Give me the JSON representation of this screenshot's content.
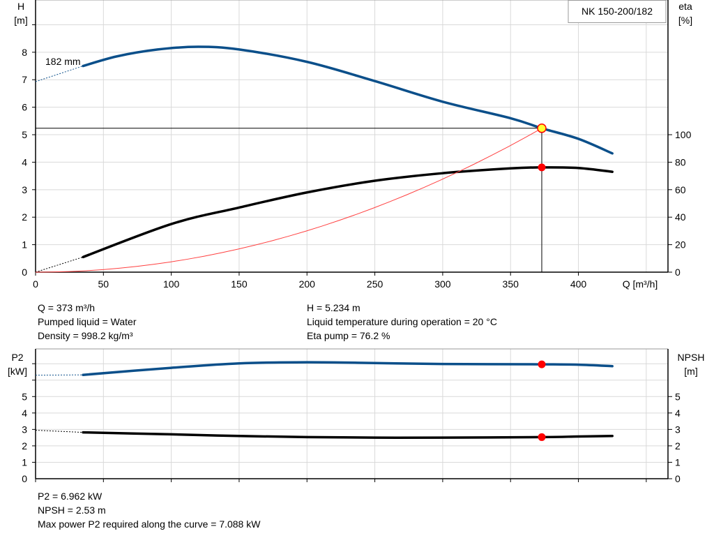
{
  "chart_data": [
    {
      "type": "line",
      "legend": "NK 150-200/182",
      "curve_label": "182 mm",
      "xlabel": "Q [m³/h]",
      "xlim": [
        0,
        466
      ],
      "xticks": [
        0,
        50,
        100,
        150,
        200,
        250,
        300,
        350,
        400
      ],
      "ylabel_left": [
        "H",
        "[m]"
      ],
      "ylim_left": [
        0,
        9.9
      ],
      "yticks_left": [
        0,
        1,
        2,
        3,
        4,
        5,
        6,
        7,
        8
      ],
      "ylabel_right": [
        "eta",
        "[%]"
      ],
      "ylim_right": [
        0,
        198
      ],
      "yticks_right": [
        0,
        20,
        40,
        60,
        80,
        100
      ],
      "grid": true,
      "colors": {
        "head": "#0b4f8a",
        "eta": "#000000",
        "system": "#ff4040",
        "duty_point": "#ff0000",
        "duty_point_head": "#ffff33"
      },
      "series": [
        {
          "key": "head",
          "axis": "left",
          "x": [
            35,
            60,
            90,
            120,
            150,
            200,
            250,
            300,
            350,
            373,
            400,
            425
          ],
          "y": [
            7.5,
            7.85,
            8.1,
            8.2,
            8.1,
            7.65,
            6.95,
            6.2,
            5.6,
            5.234,
            4.85,
            4.32
          ],
          "extrapolated": {
            "x": [
              0,
              35
            ],
            "y": [
              6.93,
              7.5
            ]
          }
        },
        {
          "key": "eta",
          "axis": "right",
          "x": [
            35,
            100,
            150,
            200,
            250,
            300,
            350,
            373,
            400,
            425
          ],
          "y": [
            11,
            35,
            47,
            58,
            66.5,
            72,
            75.5,
            76.2,
            75.8,
            73
          ],
          "extrapolated": {
            "x": [
              0,
              35
            ],
            "y": [
              0,
              11
            ]
          }
        },
        {
          "key": "system",
          "axis": "left",
          "function": "quadratic_through_origin",
          "x": [
            0,
            373
          ],
          "y": [
            0,
            5.234
          ]
        }
      ],
      "duty_point": {
        "Q": 373,
        "H": 5.234,
        "eta": 76.2
      }
    },
    {
      "type": "line",
      "xlim": [
        0,
        466
      ],
      "ylabel_left": [
        "P2",
        "[kW]"
      ],
      "ylim_left": [
        0,
        7.9
      ],
      "yticks_left": [
        0,
        1,
        2,
        3,
        4,
        5
      ],
      "ylabel_right": [
        "NPSH",
        "[m]"
      ],
      "ylim_right": [
        0,
        7.9
      ],
      "yticks_right": [
        0,
        1,
        2,
        3,
        4,
        5
      ],
      "grid": true,
      "colors": {
        "p2": "#0b4f8a",
        "npsh": "#000000",
        "duty_point": "#ff0000"
      },
      "series": [
        {
          "key": "p2",
          "x": [
            35,
            100,
            150,
            200,
            250,
            300,
            373,
            400,
            425
          ],
          "y": [
            6.32,
            6.75,
            7.02,
            7.088,
            7.04,
            6.98,
            6.962,
            6.94,
            6.85
          ],
          "extrapolated": {
            "x": [
              0,
              35
            ],
            "y": [
              6.3,
              6.32
            ]
          }
        },
        {
          "key": "npsh",
          "x": [
            35,
            100,
            150,
            200,
            250,
            300,
            373,
            400,
            425
          ],
          "y": [
            2.82,
            2.7,
            2.6,
            2.53,
            2.5,
            2.5,
            2.53,
            2.57,
            2.6
          ],
          "extrapolated": {
            "x": [
              0,
              35
            ],
            "y": [
              2.95,
              2.82
            ]
          }
        }
      ],
      "duty_point": {
        "Q": 373,
        "P2": 6.962,
        "NPSH": 2.53
      }
    }
  ],
  "info_top": {
    "left": [
      "Q = 373 m³/h",
      "Pumped liquid = Water",
      "Density = 998.2 kg/m³"
    ],
    "right": [
      "H = 5.234 m",
      "Liquid temperature during operation = 20 °C",
      "Eta pump = 76.2 %"
    ]
  },
  "info_bottom": [
    "P2 = 6.962 kW",
    "NPSH = 2.53 m",
    "Max power P2 required along the curve = 7.088 kW"
  ]
}
